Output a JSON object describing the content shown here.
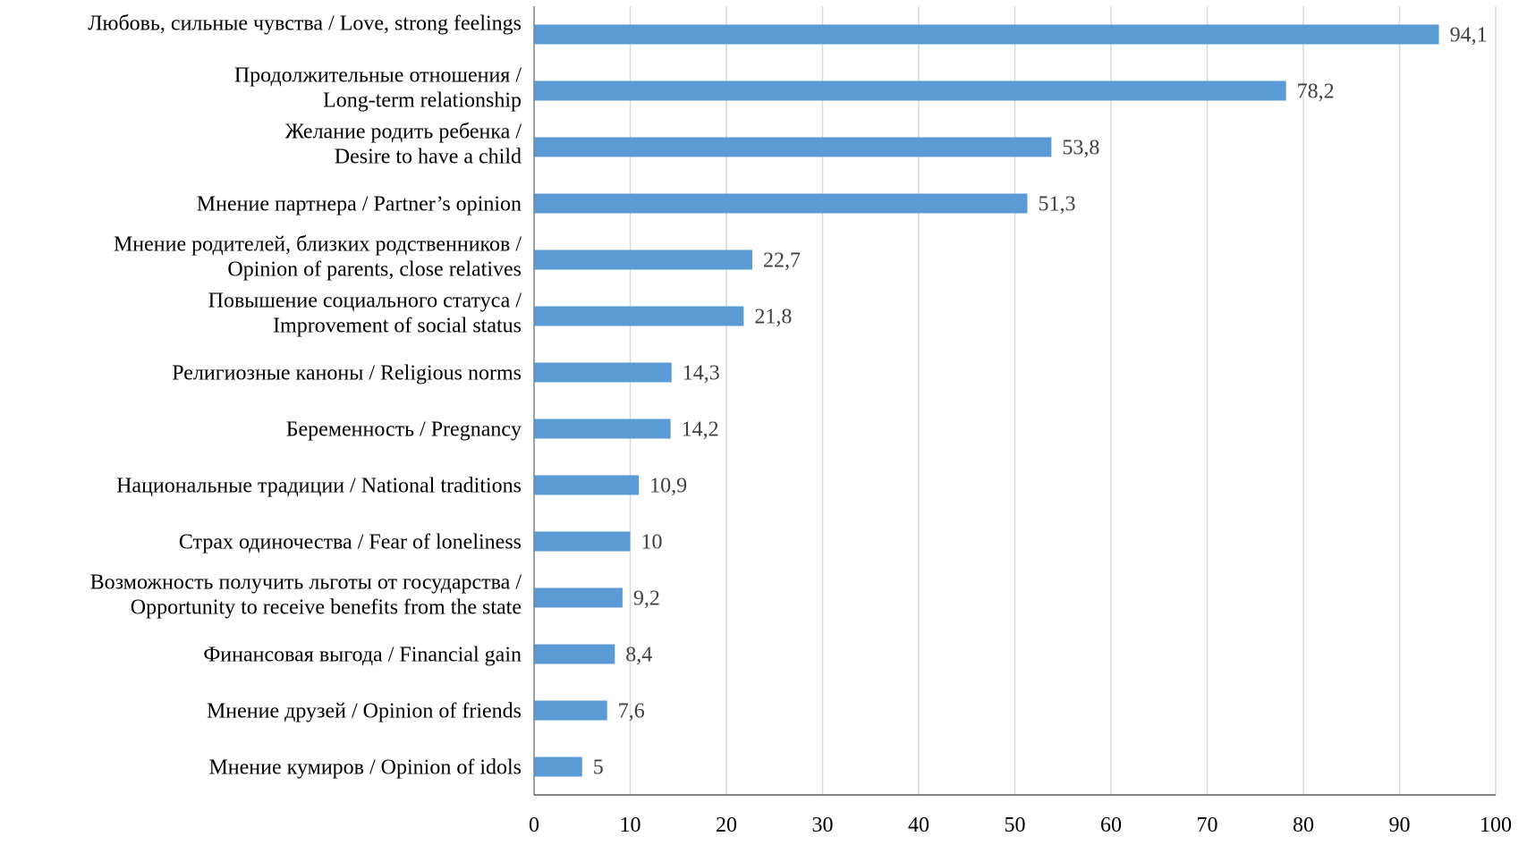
{
  "chart_data": {
    "type": "bar",
    "orientation": "horizontal",
    "title": "",
    "xlabel": "",
    "ylabel": "",
    "xlim": [
      0,
      100
    ],
    "x_ticks": [
      "0",
      "10",
      "20",
      "30",
      "40",
      "50",
      "60",
      "70",
      "80",
      "90",
      "100"
    ],
    "grid": "vertical",
    "legend": "none",
    "bar_color": "#5B9BD5",
    "categories": [
      [
        "Любовь, сильные чувства / Love, strong feelings"
      ],
      [
        "Продолжительные отношения /",
        "Long-term relationship"
      ],
      [
        "Желание родить ребенка /",
        "Desire to have a child"
      ],
      [
        "Мнение партнера / Partner’s opinion"
      ],
      [
        "Мнение родителей, близких родственников /",
        "Opinion of parents, close relatives"
      ],
      [
        "Повышение социального статуса /",
        "Improvement of social status"
      ],
      [
        "Религиозные каноны / Religious norms"
      ],
      [
        "Беременность / Pregnancy"
      ],
      [
        "Национальные традиции / National traditions"
      ],
      [
        "Страх одиночества / Fear of loneliness"
      ],
      [
        "Возможность получить льготы от государства /",
        "Opportunity to receive benefits from the state"
      ],
      [
        "Финансовая выгода / Financial gain"
      ],
      [
        "Мнение друзей / Opinion of friends"
      ],
      [
        "Мнение кумиров / Opinion of idols"
      ]
    ],
    "values": [
      94.1,
      78.2,
      53.8,
      51.3,
      22.7,
      21.8,
      14.3,
      14.2,
      10.9,
      10,
      9.2,
      8.4,
      7.6,
      5
    ],
    "value_labels": [
      "94,1",
      "78,2",
      "53,8",
      "51,3",
      "22,7",
      "21,8",
      "14,3",
      "14,2",
      "10,9",
      "10",
      "9,2",
      "8,4",
      "7,6",
      "5"
    ]
  }
}
